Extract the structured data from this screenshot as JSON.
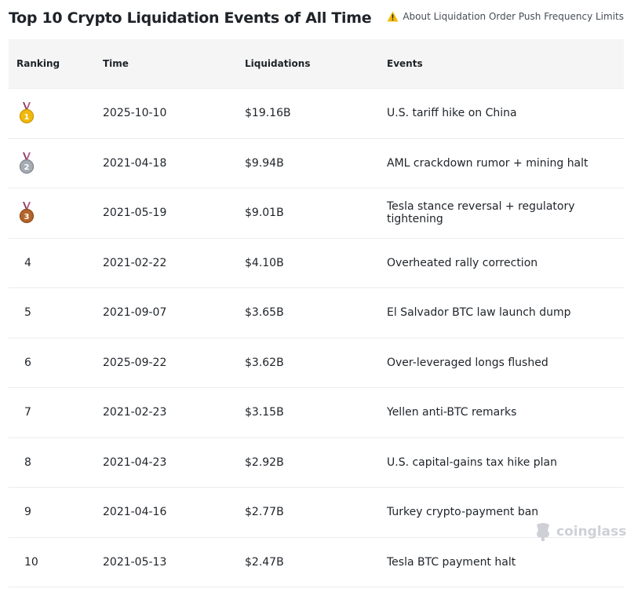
{
  "title": "Top 10 Crypto Liquidation Events of All Time",
  "notice": {
    "icon": "warning-icon",
    "text": "About Liquidation Order Push Frequency Limits"
  },
  "columns": {
    "ranking": "Ranking",
    "time": "Time",
    "liquidations": "Liquidations",
    "events": "Events"
  },
  "rows": [
    {
      "rank": "1",
      "medal": "gold-medal-icon",
      "time": "2025-10-10",
      "liquidations": "$19.16B",
      "event": "U.S. tariff hike on China"
    },
    {
      "rank": "2",
      "medal": "silver-medal-icon",
      "time": "2021-04-18",
      "liquidations": "$9.94B",
      "event": "AML crackdown rumor + mining halt"
    },
    {
      "rank": "3",
      "medal": "bronze-medal-icon",
      "time": "2021-05-19",
      "liquidations": "$9.01B",
      "event": "Tesla stance reversal + regulatory tightening"
    },
    {
      "rank": "4",
      "time": "2021-02-22",
      "liquidations": "$4.10B",
      "event": "Overheated rally correction"
    },
    {
      "rank": "5",
      "time": "2021-09-07",
      "liquidations": "$3.65B",
      "event": "El Salvador BTC law launch dump"
    },
    {
      "rank": "6",
      "time": "2025-09-22",
      "liquidations": "$3.62B",
      "event": "Over-leveraged longs flushed"
    },
    {
      "rank": "7",
      "time": "2021-02-23",
      "liquidations": "$3.15B",
      "event": "Yellen anti-BTC remarks"
    },
    {
      "rank": "8",
      "time": "2021-04-23",
      "liquidations": "$2.92B",
      "event": "U.S. capital-gains tax hike plan"
    },
    {
      "rank": "9",
      "time": "2021-04-16",
      "liquidations": "$2.77B",
      "event": "Turkey crypto-payment ban"
    },
    {
      "rank": "10",
      "time": "2021-05-13",
      "liquidations": "$2.47B",
      "event": "Tesla BTC payment halt"
    }
  ],
  "watermark": "coinglass",
  "colors": {
    "gold": "#f0b90b",
    "silver": "#a6acb4",
    "bronze": "#b5652b",
    "header_bg": "#f5f5f5",
    "divider": "#eaecef",
    "warning": "#f0b90b"
  }
}
